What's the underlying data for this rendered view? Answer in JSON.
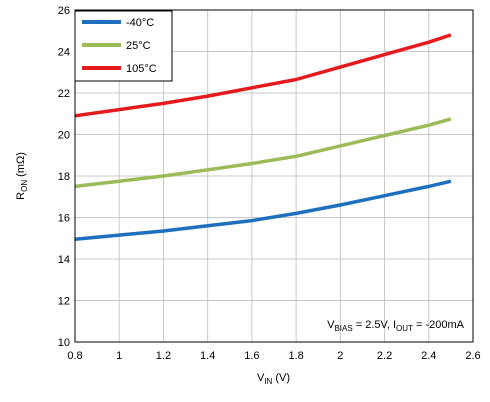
{
  "chart_data": {
    "type": "line",
    "xlabel": {
      "main": "V",
      "sub": "IN",
      "unit": " (V)"
    },
    "ylabel": {
      "main": "R",
      "sub": "ON",
      "unit": " (mΩ)"
    },
    "xlim": [
      0.8,
      2.6
    ],
    "ylim": [
      10,
      26
    ],
    "xticks": [
      0.8,
      1,
      1.2,
      1.4,
      1.6,
      1.8,
      2,
      2.2,
      2.4,
      2.6
    ],
    "xtick_labels": [
      "0.8",
      "1",
      "1.2",
      "1.4",
      "1.6",
      "1.8",
      "2",
      "2.2",
      "2.4",
      "2.6"
    ],
    "yticks": [
      10,
      12,
      14,
      16,
      18,
      20,
      22,
      24,
      26
    ],
    "ytick_labels": [
      "10",
      "12",
      "14",
      "16",
      "18",
      "20",
      "22",
      "24",
      "26"
    ],
    "grid": true,
    "legend_position": "top-left",
    "x": [
      0.8,
      1.0,
      1.2,
      1.4,
      1.6,
      1.8,
      2.0,
      2.2,
      2.4,
      2.5
    ],
    "series": [
      {
        "name": "-40°C",
        "color": "#1f6fbf",
        "values": [
          14.95,
          15.15,
          15.35,
          15.6,
          15.85,
          16.2,
          16.6,
          17.05,
          17.5,
          17.75
        ]
      },
      {
        "name": "25°C",
        "color": "#9bbb59",
        "values": [
          17.5,
          17.75,
          18.0,
          18.3,
          18.6,
          18.95,
          19.45,
          19.95,
          20.45,
          20.75
        ]
      },
      {
        "name": "105°C",
        "color": "#e41a1c",
        "values": [
          20.9,
          21.2,
          21.5,
          21.85,
          22.25,
          22.65,
          23.25,
          23.85,
          24.45,
          24.8
        ]
      }
    ],
    "annotation": {
      "v": "V",
      "bias_sub": "BIAS",
      "bias_val": " = 2.5V, ",
      "i": "I",
      "out_sub": "OUT",
      "out_val": " = -200mA"
    }
  }
}
